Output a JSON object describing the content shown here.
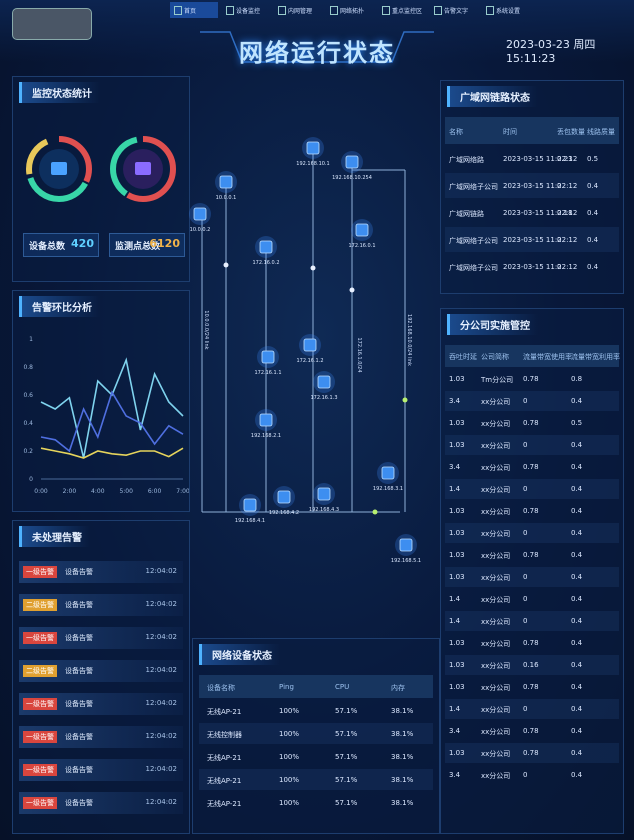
{
  "header": {
    "nav": [
      "首页",
      "设备监控",
      "内网管理",
      "网络拓扑",
      "重点监控区",
      "告警文字",
      "系统设置"
    ],
    "title": "网络运行状态",
    "datetime": "2023-03-23 周四 15:11:23"
  },
  "monitor_stats": {
    "title": "监控状态统计",
    "items": [
      {
        "label": "设备总数",
        "value": "420"
      },
      {
        "label": "监测点总数",
        "value": "6120"
      }
    ]
  },
  "chart_data": {
    "type": "line",
    "title": "告警环比分析",
    "categories": [
      "0:00",
      null,
      "2:00",
      null,
      "4:00",
      null,
      "5:00",
      null,
      "6:00",
      null,
      "7:00"
    ],
    "ylim": [
      0,
      1
    ],
    "yticks": [
      0,
      0.2,
      0.4,
      0.6,
      0.8,
      1
    ],
    "grid": false,
    "series": [
      {
        "color": "#7fd3ee",
        "values": [
          0.55,
          0.5,
          0.58,
          0.15,
          0.7,
          0.6,
          0.85,
          0.35,
          0.75,
          0.55,
          0.45
        ]
      },
      {
        "color": "#4f6fe0",
        "values": [
          0.3,
          0.28,
          0.2,
          0.5,
          0.3,
          0.62,
          0.45,
          0.4,
          0.25,
          0.38,
          0.32
        ]
      },
      {
        "color": "#e6d45c",
        "values": [
          0.22,
          0.2,
          0.18,
          0.15,
          0.2,
          0.18,
          0.17,
          0.2,
          0.2,
          0.16,
          0.22
        ]
      }
    ]
  },
  "alarms": {
    "title": "未处理告警",
    "rows": [
      {
        "level": "一级告警",
        "color": "#d9463e",
        "text": "设备告警",
        "time": "12:04:02"
      },
      {
        "level": "二级告警",
        "color": "#e0a030",
        "text": "设备告警",
        "time": "12:04:02"
      },
      {
        "level": "一级告警",
        "color": "#d9463e",
        "text": "设备告警",
        "time": "12:04:02"
      },
      {
        "level": "二级告警",
        "color": "#e0a030",
        "text": "设备告警",
        "time": "12:04:02"
      },
      {
        "level": "一级告警",
        "color": "#d9463e",
        "text": "设备告警",
        "time": "12:04:02"
      },
      {
        "level": "一级告警",
        "color": "#d9463e",
        "text": "设备告警",
        "time": "12:04:02"
      },
      {
        "level": "一级告警",
        "color": "#d9463e",
        "text": "设备告警",
        "time": "12:04:02"
      },
      {
        "level": "一级告警",
        "color": "#d9463e",
        "text": "设备告警",
        "time": "12:04:02"
      }
    ]
  },
  "topology": {
    "nodes": [
      "192.168.10.1",
      "192.168.10.254",
      "10.0.0.1",
      "10.0.0.2",
      "172.16.0.1",
      "172.16.0.2",
      "172.16.1.1",
      "172.16.1.2",
      "172.16.1.3",
      "192.168.2.1",
      "192.168.3.1",
      "192.168.4.1",
      "192.168.4.2",
      "192.168.4.3",
      "192.168.5.1"
    ],
    "links": [
      "10.0.0.0/24 link",
      "172.16.1.0/24",
      "192.168.10.0/24 link"
    ]
  },
  "device_status": {
    "title": "网络设备状态",
    "headers": [
      "设备名称",
      "Ping",
      "CPU",
      "内存"
    ],
    "rows": [
      [
        "无线AP-21",
        "100%",
        "57.1%",
        "38.1%"
      ],
      [
        "无线控制器",
        "100%",
        "57.1%",
        "38.1%"
      ],
      [
        "无线AP-21",
        "100%",
        "57.1%",
        "38.1%"
      ],
      [
        "无线AP-21",
        "100%",
        "57.1%",
        "38.1%"
      ],
      [
        "无线AP-21",
        "100%",
        "57.1%",
        "38.1%"
      ]
    ]
  },
  "wan_status": {
    "title": "广域网链路状态",
    "headers": [
      "名称",
      "时间",
      "丢包数量",
      "线路质量"
    ],
    "rows": [
      [
        "广域网络路",
        "2023-03-15 11:22:12",
        "0.23",
        "0.5"
      ],
      [
        "广域网络子公司",
        "2023-03-15 11:22:12",
        "0",
        "0.4"
      ],
      [
        "广域网链路",
        "2023-03-15 11:22:12",
        "0.18",
        "0.4"
      ],
      [
        "广域网络子公司",
        "2023-03-15 11:22:12",
        "0",
        "0.4"
      ],
      [
        "广域网络子公司",
        "2023-03-15 11:22:12",
        "0",
        "0.4"
      ]
    ]
  },
  "branch_control": {
    "title": "分公司实施管控",
    "headers": [
      "吞吐时延",
      "公司简称",
      "流量带宽使用率",
      "流量带宽利用率"
    ],
    "rows": [
      [
        "1.03",
        "Tm分公司",
        "0.78",
        "0.8"
      ],
      [
        "3.4",
        "xx分公司",
        "0",
        "0.4"
      ],
      [
        "1.03",
        "xx分公司",
        "0.78",
        "0.5"
      ],
      [
        "1.03",
        "xx分公司",
        "0",
        "0.4"
      ],
      [
        "3.4",
        "xx分公司",
        "0.78",
        "0.4"
      ],
      [
        "1.4",
        "xx分公司",
        "0",
        "0.4"
      ],
      [
        "1.03",
        "xx分公司",
        "0.78",
        "0.4"
      ],
      [
        "1.03",
        "xx分公司",
        "0",
        "0.4"
      ],
      [
        "1.03",
        "xx分公司",
        "0.78",
        "0.4"
      ],
      [
        "1.03",
        "xx分公司",
        "0",
        "0.4"
      ],
      [
        "1.4",
        "xx分公司",
        "0",
        "0.4"
      ],
      [
        "1.4",
        "xx分公司",
        "0",
        "0.4"
      ],
      [
        "1.03",
        "xx分公司",
        "0.78",
        "0.4"
      ],
      [
        "1.03",
        "xx分公司",
        "0.16",
        "0.4"
      ],
      [
        "1.03",
        "xx分公司",
        "0.78",
        "0.4"
      ],
      [
        "1.4",
        "xx分公司",
        "0",
        "0.4"
      ],
      [
        "3.4",
        "xx分公司",
        "0.78",
        "0.4"
      ],
      [
        "1.03",
        "xx分公司",
        "0.78",
        "0.4"
      ],
      [
        "3.4",
        "xx分公司",
        "0",
        "0.4"
      ]
    ]
  }
}
